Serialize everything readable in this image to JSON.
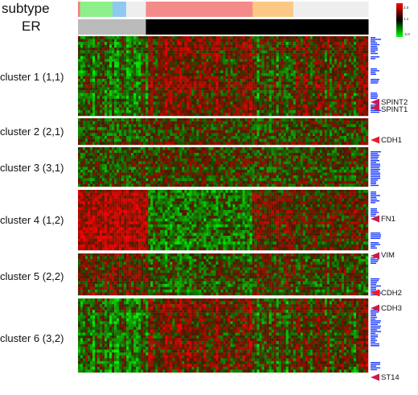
{
  "tracks": [
    {
      "label": "subtype",
      "segments": [
        {
          "color": "#f08080",
          "start": 0.0,
          "end": 0.007
        },
        {
          "color": "#8ef08a",
          "start": 0.007,
          "end": 0.119
        },
        {
          "color": "#8fc8f0",
          "start": 0.119,
          "end": 0.166
        },
        {
          "color": "#eeeeee",
          "start": 0.166,
          "end": 0.234
        },
        {
          "color": "#f58a8a",
          "start": 0.234,
          "end": 0.602
        },
        {
          "color": "#fbc985",
          "start": 0.602,
          "end": 0.742
        },
        {
          "color": "#eeeeee",
          "start": 0.742,
          "end": 1.0
        }
      ]
    },
    {
      "label": "ER",
      "segments": [
        {
          "color": "#bbbbbb",
          "start": 0.0,
          "end": 0.234
        },
        {
          "color": "#000000",
          "start": 0.234,
          "end": 1.0
        }
      ]
    }
  ],
  "colorbar": {
    "max_label": "2.0",
    "mid_label": "1.1",
    "min_label": "-2.0",
    "top_color": "#ff0000",
    "mid_color": "#000000",
    "bottom_color": "#00ff00"
  },
  "clusters": [
    {
      "label": "cluster 1 (1,1)"
    },
    {
      "label": "cluster 2 (2,1)"
    },
    {
      "label": "cluster 3 (3,1)"
    },
    {
      "label": "cluster 4 (1,2)"
    },
    {
      "label": "cluster 5 (2,2)"
    },
    {
      "label": "cluster 6 (3,2)"
    }
  ],
  "genes": [
    {
      "label": "SPINT2",
      "arrow_color": "#cc1a4d"
    },
    {
      "label": "SPINT1",
      "arrow_color": "#cc1a4d"
    },
    {
      "label": "CDH1",
      "arrow_color": "#ee1c24"
    },
    {
      "label": "FN1",
      "arrow_color": "#cc1a4d"
    },
    {
      "label": "VIM",
      "arrow_color": "#cc1a4d"
    },
    {
      "label": "CDH2",
      "arrow_color": "#ee1c24"
    },
    {
      "label": "CDH3",
      "arrow_color": "#cc1a4d"
    },
    {
      "label": "ST14",
      "arrow_color": "#cc1a4d"
    }
  ],
  "legend_colors": {
    "up": "#ff0000",
    "neutral": "#000000",
    "down": "#00ff00",
    "marker": "#1a3cff"
  }
}
